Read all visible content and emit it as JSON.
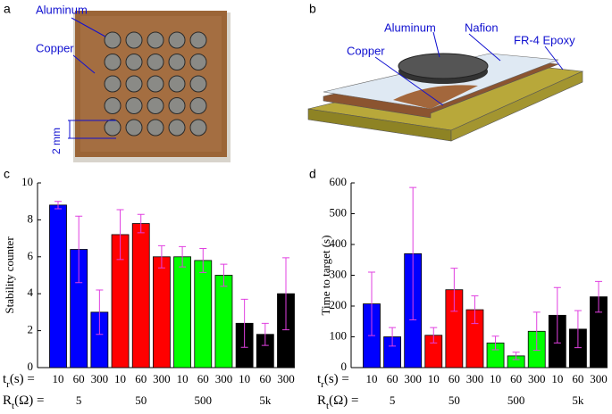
{
  "panel_a": {
    "label": "a",
    "aluminum": "Aluminum",
    "copper": "Copper",
    "scale": "2 mm"
  },
  "panel_b": {
    "label": "b",
    "aluminum": "Aluminum",
    "nafion": "Nafion",
    "epoxy": "FR-4 Epoxy",
    "copper": "Copper"
  },
  "chart_data": [
    {
      "type": "bar",
      "panel": "c",
      "ylabel": "Stability counter",
      "ylim": [
        0,
        10
      ],
      "yticks": [
        0,
        2,
        4,
        6,
        8,
        10
      ],
      "categories": [
        "10",
        "60",
        "300",
        "10",
        "60",
        "300",
        "10",
        "60",
        "300",
        "10",
        "60",
        "300"
      ],
      "values": [
        8.8,
        6.4,
        3.0,
        7.2,
        7.8,
        6.0,
        6.0,
        5.8,
        5.0,
        2.4,
        1.8,
        4.0
      ],
      "errors": [
        0.2,
        1.8,
        1.2,
        1.35,
        0.5,
        0.6,
        0.55,
        0.65,
        0.6,
        1.3,
        0.6,
        1.95
      ],
      "colors": [
        "#0000ff",
        "#0000ff",
        "#0000ff",
        "#ff0000",
        "#ff0000",
        "#ff0000",
        "#00ff00",
        "#00ff00",
        "#00ff00",
        "#000000",
        "#000000",
        "#000000"
      ],
      "error_color": "#e040e0",
      "groups": [
        "5",
        "50",
        "500",
        "5k"
      ],
      "x_row_label": {
        "main": "t",
        "sub": "r",
        "rest": "(s) ="
      },
      "group_row_label": {
        "main": "R",
        "sub": "t",
        "rest": "(Ω) ="
      }
    },
    {
      "type": "bar",
      "panel": "d",
      "ylabel": "Time to target (s)",
      "ylim": [
        0,
        600
      ],
      "yticks": [
        0,
        100,
        200,
        300,
        400,
        500,
        600
      ],
      "categories": [
        "10",
        "60",
        "300",
        "10",
        "60",
        "300",
        "10",
        "60",
        "300",
        "10",
        "60",
        "300"
      ],
      "values": [
        207,
        100,
        370,
        105,
        253,
        188,
        80,
        38,
        118,
        170,
        125,
        230
      ],
      "errors": [
        103,
        30,
        215,
        25,
        70,
        45,
        22,
        12,
        62,
        90,
        60,
        50
      ],
      "colors": [
        "#0000ff",
        "#0000ff",
        "#0000ff",
        "#ff0000",
        "#ff0000",
        "#ff0000",
        "#00ff00",
        "#00ff00",
        "#00ff00",
        "#000000",
        "#000000",
        "#000000"
      ],
      "error_color": "#e040e0",
      "groups": [
        "5",
        "50",
        "500",
        "5k"
      ],
      "x_row_label": {
        "main": "t",
        "sub": "r",
        "rest": "(s) ="
      },
      "group_row_label": {
        "main": "R",
        "sub": "t",
        "rest": "(Ω) ="
      }
    }
  ]
}
